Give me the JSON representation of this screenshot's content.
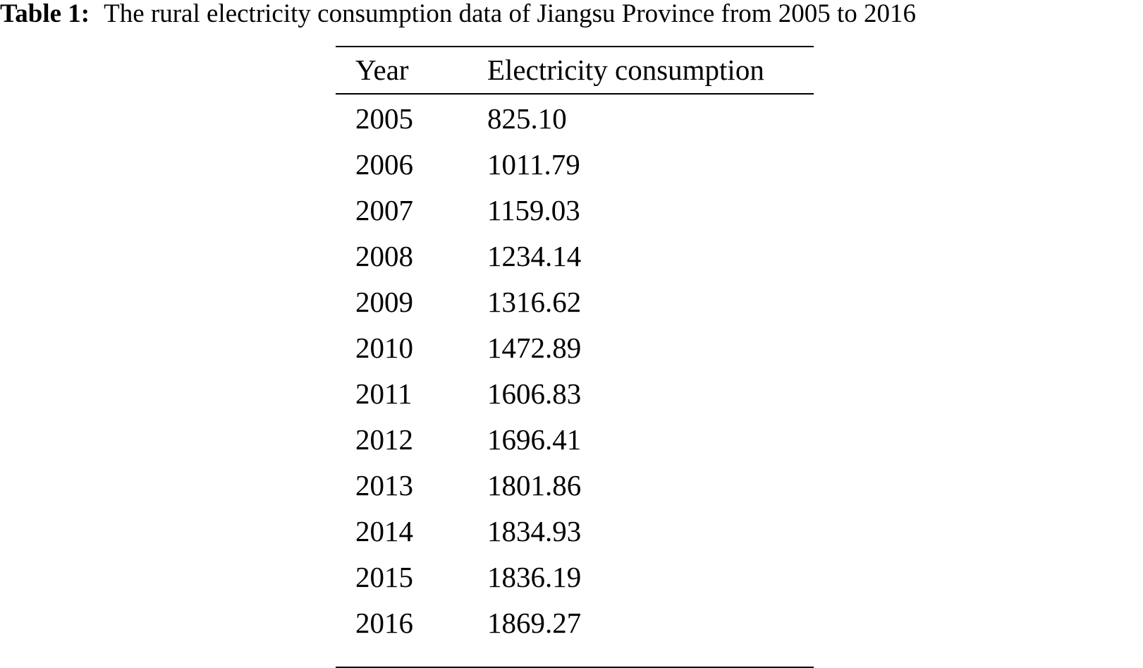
{
  "caption": {
    "label": "Table 1:",
    "text": "The rural electricity consumption data of Jiangsu Province from 2005 to 2016"
  },
  "table": {
    "headers": [
      "Year",
      "Electricity consumption"
    ],
    "rows": [
      {
        "year": "2005",
        "value": "825.10"
      },
      {
        "year": "2006",
        "value": "1011.79"
      },
      {
        "year": "2007",
        "value": "1159.03"
      },
      {
        "year": "2008",
        "value": "1234.14"
      },
      {
        "year": "2009",
        "value": "1316.62"
      },
      {
        "year": "2010",
        "value": "1472.89"
      },
      {
        "year": "2011",
        "value": "1606.83"
      },
      {
        "year": "2012",
        "value": "1696.41"
      },
      {
        "year": "2013",
        "value": "1801.86"
      },
      {
        "year": "2014",
        "value": "1834.93"
      },
      {
        "year": "2015",
        "value": "1836.19"
      },
      {
        "year": "2016",
        "value": "1869.27"
      }
    ]
  }
}
